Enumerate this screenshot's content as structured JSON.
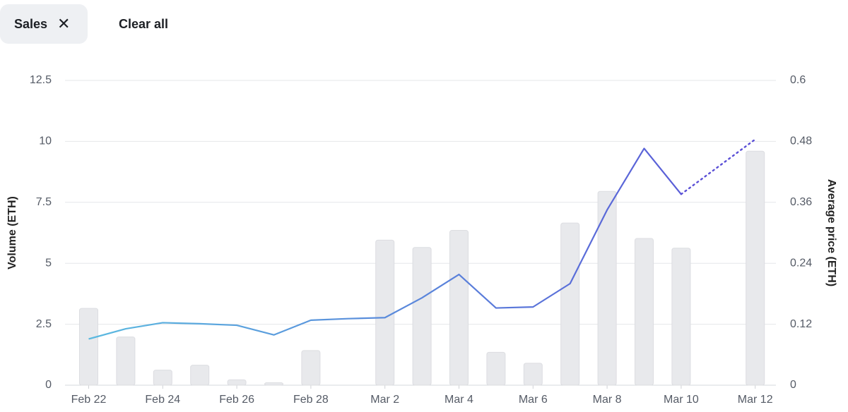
{
  "filters": {
    "chip_label": "Sales",
    "close_glyph": "✕",
    "clear_all": "Clear all"
  },
  "chart_data": {
    "type": "bar",
    "x_dates": [
      "Feb 22",
      "Feb 23",
      "Feb 24",
      "Feb 25",
      "Feb 26",
      "Feb 27",
      "Feb 28",
      "Mar 1",
      "Mar 2",
      "Mar 3",
      "Mar 4",
      "Mar 5",
      "Mar 6",
      "Mar 7",
      "Mar 8",
      "Mar 9",
      "Mar 10",
      "Mar 11",
      "Mar 12"
    ],
    "x_tick_labels": [
      "Feb 22",
      "Feb 24",
      "Feb 26",
      "Feb 28",
      "Mar 2",
      "Mar 4",
      "Mar 6",
      "Mar 8",
      "Mar 10",
      "Mar 12"
    ],
    "y_left": {
      "label": "Volume (ETH)",
      "ticks": [
        "0",
        "2.5",
        "5",
        "7.5",
        "10",
        "12.5"
      ],
      "range": [
        0,
        12.5
      ]
    },
    "y_right": {
      "label": "Average price (ETH)",
      "ticks": [
        "0",
        "0.12",
        "0.24",
        "0.36",
        "0.48",
        "0.6"
      ],
      "range": [
        0,
        0.6
      ]
    },
    "grid": true,
    "series": [
      {
        "kind": "bar",
        "color": "#e8e9ec",
        "values": [
          3.15,
          1.98,
          0.62,
          0.82,
          0.22,
          0.1,
          1.42,
          null,
          5.95,
          5.65,
          6.35,
          1.35,
          0.9,
          6.65,
          7.95,
          6.02,
          5.62,
          null,
          9.6
        ]
      },
      {
        "kind": "line",
        "color_start": "#5bbde0",
        "color_end": "#5a4fd6",
        "values": [
          0.091,
          0.111,
          0.123,
          0.121,
          0.118,
          0.099,
          0.128,
          0.131,
          0.133,
          0.172,
          0.218,
          0.152,
          0.154,
          0.2,
          0.345,
          0.466,
          0.376,
          null,
          0.484
        ],
        "dashed_from": "Mar 10"
      }
    ]
  }
}
